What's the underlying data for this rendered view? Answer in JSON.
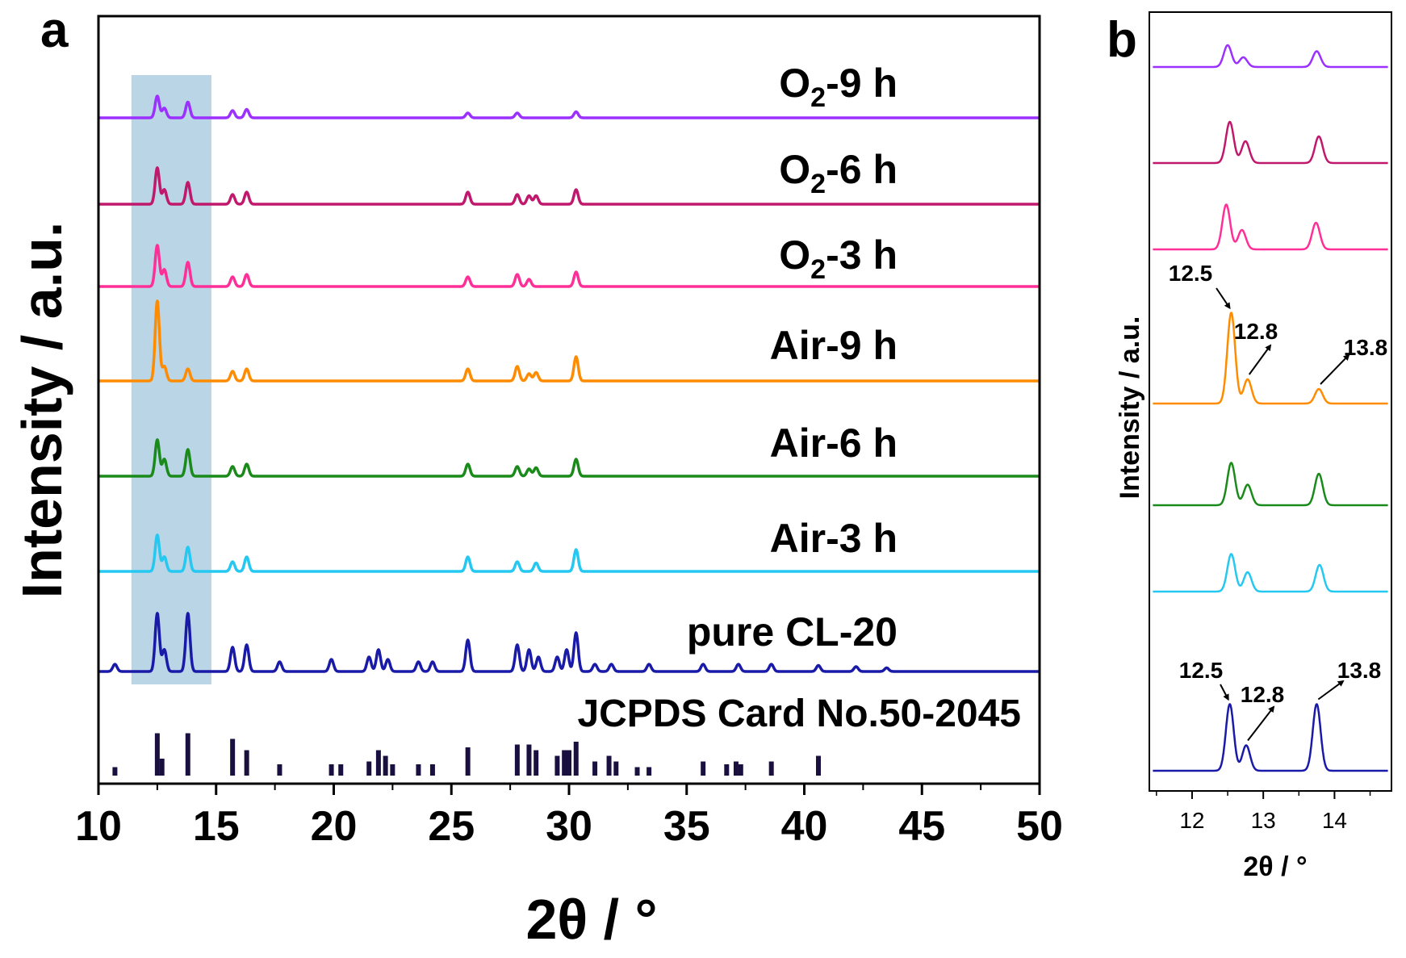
{
  "panel_a": {
    "letter": "a",
    "xlabel": "2θ / °",
    "ylabel": "Intensity / a.u.",
    "xlim": [
      10,
      50
    ],
    "x_ticks": [
      "10",
      "15",
      "20",
      "25",
      "30",
      "35",
      "40",
      "45",
      "50"
    ],
    "highlight_range": [
      11.4,
      14.8
    ],
    "reference_label": "JCPDS Card No.50-2045"
  },
  "panel_b": {
    "letter": "b",
    "xlabel": "2θ / °",
    "ylabel": "Intensity / a.u.",
    "xlim": [
      11.4,
      14.8
    ],
    "x_ticks": [
      "12",
      "13",
      "14"
    ]
  },
  "colors": {
    "O2-9h": "#9b30ff",
    "O2-6h": "#c0186c",
    "O2-3h": "#ff2f98",
    "Air-9h": "#ff8c00",
    "Air-6h": "#1a8a1a",
    "Air-3h": "#25c8f0",
    "pure": "#1a1aa8",
    "reference": "#1a1040",
    "highlight": "#a8cbe0"
  },
  "chart_data": [
    {
      "type": "line",
      "title": "a",
      "xlabel": "2θ / °",
      "ylabel": "Intensity / a.u.",
      "xlim": [
        10,
        50
      ],
      "series_order_top_to_bottom": [
        "O2-9 h",
        "O2-6 h",
        "O2-3 h",
        "Air-9 h",
        "Air-6 h",
        "Air-3 h",
        "pure CL-20"
      ],
      "series": [
        {
          "name": "O2-9 h",
          "label_main": "O",
          "label_sub": "2",
          "label_rest": "-9 h",
          "color_key": "O2-9h",
          "peaks": [
            [
              12.5,
              0.9
            ],
            [
              12.8,
              0.4
            ],
            [
              13.8,
              0.65
            ],
            [
              15.7,
              0.3
            ],
            [
              16.3,
              0.35
            ],
            [
              25.7,
              0.2
            ],
            [
              27.8,
              0.2
            ],
            [
              30.3,
              0.25
            ]
          ]
        },
        {
          "name": "O2-6 h",
          "label_main": "O",
          "label_sub": "2",
          "label_rest": "-6 h",
          "color_key": "O2-6h",
          "peaks": [
            [
              12.5,
              1.5
            ],
            [
              12.8,
              0.6
            ],
            [
              13.8,
              0.9
            ],
            [
              15.7,
              0.4
            ],
            [
              16.3,
              0.5
            ],
            [
              25.7,
              0.5
            ],
            [
              27.8,
              0.4
            ],
            [
              28.3,
              0.35
            ],
            [
              28.6,
              0.35
            ],
            [
              30.3,
              0.6
            ]
          ]
        },
        {
          "name": "O2-3 h",
          "label_main": "O",
          "label_sub": "2",
          "label_rest": "-3 h",
          "color_key": "O2-3h",
          "peaks": [
            [
              12.5,
              1.7
            ],
            [
              12.8,
              0.7
            ],
            [
              13.8,
              1.0
            ],
            [
              15.7,
              0.4
            ],
            [
              16.3,
              0.5
            ],
            [
              25.7,
              0.4
            ],
            [
              27.8,
              0.5
            ],
            [
              28.3,
              0.3
            ],
            [
              30.3,
              0.6
            ]
          ]
        },
        {
          "name": "Air-9 h",
          "label_main": "Air-9 h",
          "label_sub": "",
          "label_rest": "",
          "color_key": "Air-9h",
          "peaks": [
            [
              12.5,
              3.3
            ],
            [
              12.8,
              0.6
            ],
            [
              13.8,
              0.5
            ],
            [
              15.7,
              0.4
            ],
            [
              16.3,
              0.5
            ],
            [
              25.7,
              0.5
            ],
            [
              27.8,
              0.6
            ],
            [
              28.3,
              0.3
            ],
            [
              28.6,
              0.35
            ],
            [
              30.3,
              1.0
            ]
          ]
        },
        {
          "name": "Air-6 h",
          "label_main": "Air-6 h",
          "label_sub": "",
          "label_rest": "",
          "color_key": "Air-6h",
          "peaks": [
            [
              12.5,
              1.5
            ],
            [
              12.8,
              0.7
            ],
            [
              13.8,
              1.1
            ],
            [
              15.7,
              0.4
            ],
            [
              16.3,
              0.5
            ],
            [
              25.7,
              0.5
            ],
            [
              27.8,
              0.4
            ],
            [
              28.3,
              0.3
            ],
            [
              28.6,
              0.35
            ],
            [
              30.3,
              0.7
            ]
          ]
        },
        {
          "name": "Air-3 h",
          "label_main": "Air-3 h",
          "label_sub": "",
          "label_rest": "",
          "color_key": "Air-3h",
          "peaks": [
            [
              12.5,
              1.5
            ],
            [
              12.8,
              0.6
            ],
            [
              13.8,
              1.0
            ],
            [
              15.7,
              0.4
            ],
            [
              16.3,
              0.6
            ],
            [
              25.7,
              0.6
            ],
            [
              27.8,
              0.4
            ],
            [
              28.6,
              0.35
            ],
            [
              30.3,
              0.9
            ]
          ]
        },
        {
          "name": "pure CL-20",
          "label_main": "pure CL-20",
          "label_sub": "",
          "label_rest": "",
          "color_key": "pure",
          "peaks": [
            [
              10.7,
              0.3
            ],
            [
              12.5,
              2.4
            ],
            [
              12.8,
              0.9
            ],
            [
              13.8,
              2.4
            ],
            [
              15.7,
              1.0
            ],
            [
              16.3,
              1.1
            ],
            [
              17.7,
              0.4
            ],
            [
              19.9,
              0.5
            ],
            [
              21.5,
              0.6
            ],
            [
              21.9,
              0.9
            ],
            [
              22.3,
              0.5
            ],
            [
              23.6,
              0.4
            ],
            [
              24.2,
              0.4
            ],
            [
              25.7,
              1.3
            ],
            [
              27.8,
              1.1
            ],
            [
              28.3,
              0.9
            ],
            [
              28.7,
              0.6
            ],
            [
              29.5,
              0.6
            ],
            [
              29.9,
              0.9
            ],
            [
              30.3,
              1.6
            ],
            [
              31.1,
              0.3
            ],
            [
              31.8,
              0.3
            ],
            [
              33.4,
              0.3
            ],
            [
              35.7,
              0.3
            ],
            [
              37.2,
              0.3
            ],
            [
              38.6,
              0.3
            ],
            [
              40.6,
              0.25
            ],
            [
              42.2,
              0.2
            ],
            [
              43.5,
              0.15
            ]
          ]
        }
      ],
      "reference_sticks": [
        [
          10.7,
          0.15
        ],
        [
          12.5,
          0.75
        ],
        [
          12.7,
          0.3
        ],
        [
          13.8,
          0.75
        ],
        [
          15.7,
          0.65
        ],
        [
          16.3,
          0.45
        ],
        [
          17.7,
          0.2
        ],
        [
          19.9,
          0.2
        ],
        [
          20.3,
          0.2
        ],
        [
          21.5,
          0.25
        ],
        [
          21.9,
          0.45
        ],
        [
          22.2,
          0.35
        ],
        [
          22.5,
          0.2
        ],
        [
          23.6,
          0.2
        ],
        [
          24.2,
          0.2
        ],
        [
          25.7,
          0.5
        ],
        [
          27.8,
          0.55
        ],
        [
          28.3,
          0.55
        ],
        [
          28.6,
          0.45
        ],
        [
          29.5,
          0.35
        ],
        [
          29.8,
          0.45
        ],
        [
          30.0,
          0.45
        ],
        [
          30.3,
          0.6
        ],
        [
          31.1,
          0.25
        ],
        [
          31.7,
          0.35
        ],
        [
          32.0,
          0.25
        ],
        [
          32.9,
          0.15
        ],
        [
          33.4,
          0.15
        ],
        [
          35.7,
          0.25
        ],
        [
          36.7,
          0.2
        ],
        [
          37.1,
          0.25
        ],
        [
          37.3,
          0.2
        ],
        [
          38.6,
          0.25
        ],
        [
          40.6,
          0.35
        ]
      ]
    },
    {
      "type": "line",
      "title": "b",
      "xlabel": "2θ / °",
      "ylabel": "Intensity / a.u.",
      "xlim": [
        11.4,
        14.8
      ],
      "series": [
        {
          "name": "O2-9 h",
          "color_key": "O2-9h",
          "peaks": [
            [
              12.5,
              0.9
            ],
            [
              12.72,
              0.4
            ],
            [
              13.75,
              0.65
            ]
          ],
          "annotations": []
        },
        {
          "name": "O2-6 h",
          "color_key": "O2-6h",
          "peaks": [
            [
              12.53,
              1.7
            ],
            [
              12.75,
              0.9
            ],
            [
              13.78,
              1.1
            ]
          ],
          "annotations": []
        },
        {
          "name": "O2-3 h",
          "color_key": "O2-3h",
          "peaks": [
            [
              12.48,
              1.85
            ],
            [
              12.7,
              0.8
            ],
            [
              13.74,
              1.1
            ]
          ],
          "annotations": []
        },
        {
          "name": "Air-9 h",
          "color_key": "Air-9h",
          "peaks": [
            [
              12.55,
              3.75
            ],
            [
              12.78,
              1.0
            ],
            [
              13.78,
              0.6
            ]
          ],
          "annotations": [
            {
              "x": 12.55,
              "text": "12.5"
            },
            {
              "x": 12.78,
              "text": "12.8"
            },
            {
              "x": 13.78,
              "text": "13.8"
            }
          ]
        },
        {
          "name": "Air-6 h",
          "color_key": "Air-6h",
          "peaks": [
            [
              12.55,
              1.75
            ],
            [
              12.78,
              0.85
            ],
            [
              13.78,
              1.3
            ]
          ],
          "annotations": []
        },
        {
          "name": "Air-3 h",
          "color_key": "Air-3h",
          "peaks": [
            [
              12.55,
              1.55
            ],
            [
              12.78,
              0.8
            ],
            [
              13.79,
              1.1
            ]
          ],
          "annotations": []
        },
        {
          "name": "pure CL-20",
          "color_key": "pure",
          "peaks": [
            [
              12.53,
              2.75
            ],
            [
              12.76,
              1.05
            ],
            [
              13.75,
              2.75
            ]
          ],
          "annotations": [
            {
              "x": 12.53,
              "text": "12.5"
            },
            {
              "x": 12.76,
              "text": "12.8"
            },
            {
              "x": 13.75,
              "text": "13.8"
            }
          ]
        }
      ]
    }
  ]
}
